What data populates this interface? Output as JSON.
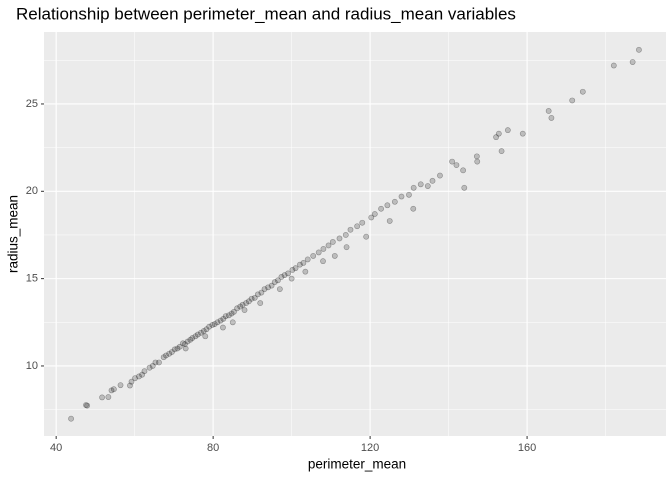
{
  "chart_data": {
    "type": "scatter",
    "title": "Relationship between perimeter_mean and radius_mean variables",
    "x_label": "perimeter_mean",
    "y_label": "radius_mean",
    "xlim": [
      36.9,
      195.4
    ],
    "ylim": [
      5.99,
      29.12
    ],
    "xticks": [
      40,
      80,
      120,
      160
    ],
    "yticks": [
      10,
      15,
      20,
      25
    ],
    "x_minor_grid": [
      60,
      100,
      140,
      180
    ],
    "y_minor_grid": [
      7.5,
      12.5,
      17.5,
      22.5,
      27.5
    ],
    "grid": true,
    "color": "#000000",
    "panel_color": "#ebebeb",
    "series": [
      {
        "name": null,
        "x": [
          43.8,
          47.9,
          47.6,
          51.7,
          53.3,
          54.1,
          54.7,
          56.4,
          58.8,
          59.2,
          60.1,
          61.1,
          61.9,
          62.5,
          63.8,
          64.6,
          65.3,
          66.2,
          67.4,
          68.0,
          68.8,
          69.5,
          70.2,
          70.9,
          71.5,
          72.3,
          72.8,
          73.5,
          74.2,
          74.7,
          75.5,
          76.1,
          76.9,
          77.6,
          78.3,
          79.0,
          79.8,
          80.4,
          81.1,
          81.9,
          82.6,
          83.2,
          84.0,
          84.7,
          85.3,
          86.1,
          86.9,
          87.5,
          88.4,
          89.1,
          89.8,
          90.6,
          91.4,
          92.3,
          93.1,
          94.0,
          94.9,
          95.7,
          96.5,
          97.4,
          98.2,
          99.1,
          100.2,
          101.0,
          102.1,
          103.0,
          104.1,
          105.5,
          106.9,
          108.1,
          109.4,
          110.5,
          112.2,
          113.8,
          115.0,
          116.7,
          118.0,
          120.3,
          121.2,
          122.8,
          124.4,
          126.3,
          128.0,
          129.9,
          131.1,
          132.9,
          134.7,
          135.9,
          137.8,
          140.9,
          142.0,
          143.7,
          144.0,
          147.2,
          147.3,
          152.1,
          152.8,
          153.5,
          155.1,
          158.9,
          165.5,
          166.2,
          171.5,
          174.2,
          182.1,
          186.9,
          188.5,
          78.0,
          82.5,
          88.0,
          92.0,
          97.0,
          103.5,
          108.0,
          114.0,
          119.0,
          125.0,
          131.0,
          73.0,
          85.0,
          100.0,
          111.0
        ],
        "values": [
          6.98,
          7.73,
          7.76,
          8.2,
          8.22,
          8.6,
          8.67,
          8.9,
          8.88,
          9.1,
          9.3,
          9.4,
          9.5,
          9.7,
          9.9,
          10.0,
          10.2,
          10.2,
          10.5,
          10.6,
          10.7,
          10.8,
          10.95,
          11.0,
          11.1,
          11.3,
          11.25,
          11.4,
          11.5,
          11.6,
          11.7,
          11.8,
          11.9,
          12.0,
          12.1,
          12.25,
          12.35,
          12.4,
          12.5,
          12.6,
          12.7,
          12.85,
          12.9,
          13.0,
          13.1,
          13.3,
          13.4,
          13.5,
          13.6,
          13.7,
          13.85,
          13.9,
          14.1,
          14.2,
          14.4,
          14.5,
          14.6,
          14.8,
          14.9,
          15.1,
          15.2,
          15.3,
          15.5,
          15.6,
          15.8,
          15.9,
          16.1,
          16.3,
          16.5,
          16.7,
          16.9,
          17.1,
          17.3,
          17.5,
          17.8,
          18.0,
          18.2,
          18.5,
          18.7,
          19.0,
          19.2,
          19.4,
          19.7,
          19.8,
          20.2,
          20.4,
          20.3,
          20.6,
          20.9,
          21.7,
          21.5,
          21.2,
          20.2,
          22.0,
          21.7,
          23.1,
          23.3,
          22.3,
          23.5,
          23.3,
          24.6,
          24.2,
          25.2,
          25.7,
          27.2,
          27.4,
          28.1,
          11.7,
          12.2,
          13.2,
          13.6,
          14.4,
          15.4,
          16.0,
          16.8,
          17.4,
          18.3,
          19.0,
          11.0,
          12.5,
          15.0,
          16.3
        ]
      }
    ]
  }
}
